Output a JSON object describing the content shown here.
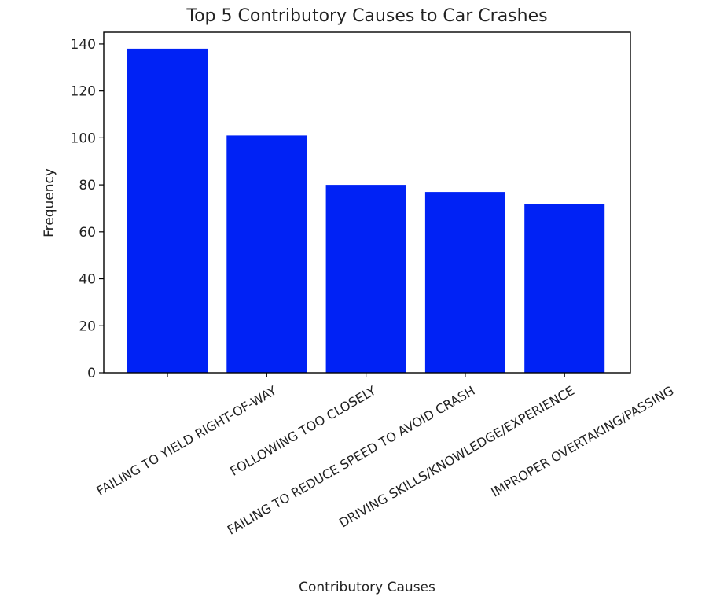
{
  "chart_data": {
    "type": "bar",
    "title": "Top 5 Contributory Causes to Car Crashes",
    "xlabel": "Contributory Causes",
    "ylabel": "Frequency",
    "categories": [
      "FAILING TO YIELD RIGHT-OF-WAY",
      "FOLLOWING TOO CLOSELY",
      "FAILING TO REDUCE SPEED TO AVOID CRASH",
      "DRIVING SKILLS/KNOWLEDGE/EXPERIENCE",
      "IMPROPER OVERTAKING/PASSING"
    ],
    "values": [
      138,
      101,
      80,
      77,
      72
    ],
    "ylim": [
      0,
      145
    ],
    "yticks": [
      0,
      20,
      40,
      60,
      80,
      100,
      120,
      140
    ],
    "bar_color": "#0022f5",
    "grid": false,
    "legend": "none"
  }
}
